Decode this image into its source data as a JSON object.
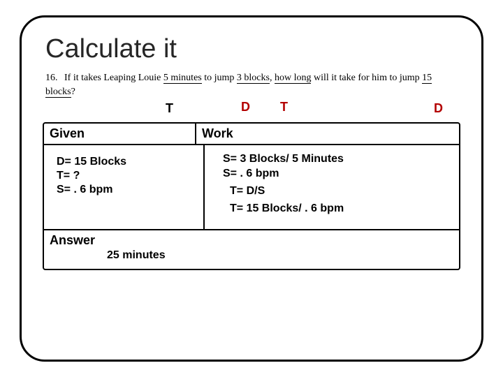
{
  "title": "Calculate it",
  "question": {
    "number": "16.",
    "pre1": "If it takes Leaping Louie ",
    "u1": "5 minutes",
    "mid1": " to jump ",
    "u2": "3 blocks",
    "mid2": ", ",
    "u3": "how long",
    "mid3": " will it take for him to jump ",
    "u4": "15 blocks",
    "post": "?"
  },
  "annotations": {
    "t1": "T",
    "d1": "D",
    "t2": "T",
    "d2": "D"
  },
  "colors": {
    "red": "#b30000",
    "black": "#000000"
  },
  "headers": {
    "given": "Given",
    "work": "Work",
    "answer": "Answer"
  },
  "given": {
    "l1": "D= 15 Blocks",
    "l2": "T=    ?",
    "l3": "S= . 6 bpm"
  },
  "work": {
    "l1": "S= 3 Blocks/  5 Minutes",
    "l2": "S= . 6 bpm",
    "l3": "T= D/S",
    "l4": "T= 15 Blocks/ . 6 bpm"
  },
  "answer": "25 minutes",
  "fontsizes": {
    "title": 38,
    "body": 16,
    "header": 18,
    "question": 14
  }
}
